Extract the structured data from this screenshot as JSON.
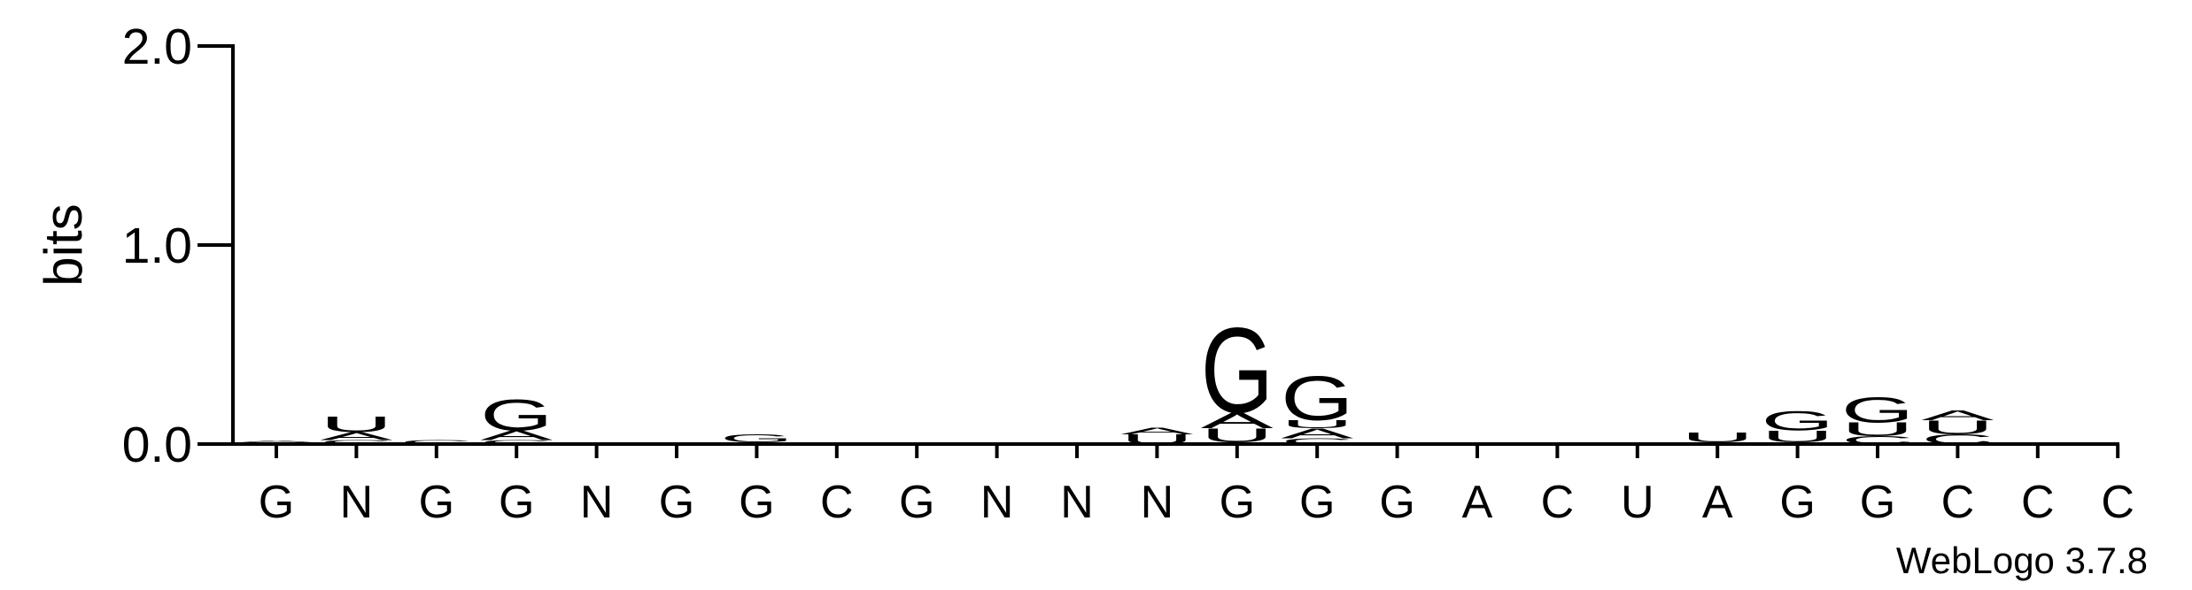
{
  "chart_data": {
    "type": "logo",
    "ylabel": "bits",
    "credit": "WebLogo 3.7.8",
    "ylim": [
      0,
      2
    ],
    "yticks": [
      {
        "value": 0,
        "label": "0.0"
      },
      {
        "value": 1,
        "label": "1.0"
      },
      {
        "value": 2,
        "label": "2.0"
      }
    ],
    "letter_colors": {
      "A": "#ff8c00",
      "U": "#ff8c00",
      "G": "#0000ff",
      "C": "#0000ff"
    },
    "categories": [
      "G",
      "N",
      "G",
      "G",
      "N",
      "G",
      "G",
      "C",
      "G",
      "N",
      "N",
      "N",
      "G",
      "G",
      "G",
      "A",
      "C",
      "U",
      "A",
      "G",
      "G",
      "C",
      "C",
      "C"
    ],
    "stacks": [
      [
        {
          "letter": "G",
          "value": 0.01
        },
        {
          "letter": "A",
          "value": 0.01
        }
      ],
      [
        {
          "letter": "C",
          "value": 0.02
        },
        {
          "letter": "A",
          "value": 0.04
        },
        {
          "letter": "U",
          "value": 0.08
        }
      ],
      [
        {
          "letter": "C",
          "value": 0.02
        }
      ],
      [
        {
          "letter": "C",
          "value": 0.02
        },
        {
          "letter": "A",
          "value": 0.05
        },
        {
          "letter": "G",
          "value": 0.16
        }
      ],
      [
        {
          "letter": "U",
          "value": 0.01
        }
      ],
      [
        {
          "letter": "A",
          "value": 0.01
        }
      ],
      [
        {
          "letter": "A",
          "value": 0.01
        },
        {
          "letter": "G",
          "value": 0.04
        }
      ],
      [],
      [],
      [],
      [],
      [
        {
          "letter": "U",
          "value": 0.05
        },
        {
          "letter": "A",
          "value": 0.035
        }
      ],
      [
        {
          "letter": "C",
          "value": 0.01
        },
        {
          "letter": "U",
          "value": 0.07
        },
        {
          "letter": "A",
          "value": 0.08
        },
        {
          "letter": "G",
          "value": 0.44
        }
      ],
      [
        {
          "letter": "C",
          "value": 0.03
        },
        {
          "letter": "A",
          "value": 0.05
        },
        {
          "letter": "U",
          "value": 0.04
        },
        {
          "letter": "G",
          "value": 0.23
        }
      ],
      [
        {
          "letter": "A",
          "value": 0.01
        }
      ],
      [],
      [
        {
          "letter": "A",
          "value": 0.01
        }
      ],
      [],
      [
        {
          "letter": "A",
          "value": 0.01
        },
        {
          "letter": "U",
          "value": 0.05
        }
      ],
      [
        {
          "letter": "A",
          "value": 0.01
        },
        {
          "letter": "U",
          "value": 0.06
        },
        {
          "letter": "G",
          "value": 0.1
        }
      ],
      [
        {
          "letter": "C",
          "value": 0.04
        },
        {
          "letter": "U",
          "value": 0.07
        },
        {
          "letter": "G",
          "value": 0.13
        }
      ],
      [
        {
          "letter": "C",
          "value": 0.05
        },
        {
          "letter": "U",
          "value": 0.07
        },
        {
          "letter": "A",
          "value": 0.05
        }
      ],
      [
        {
          "letter": "A",
          "value": 0.01
        }
      ],
      []
    ]
  }
}
